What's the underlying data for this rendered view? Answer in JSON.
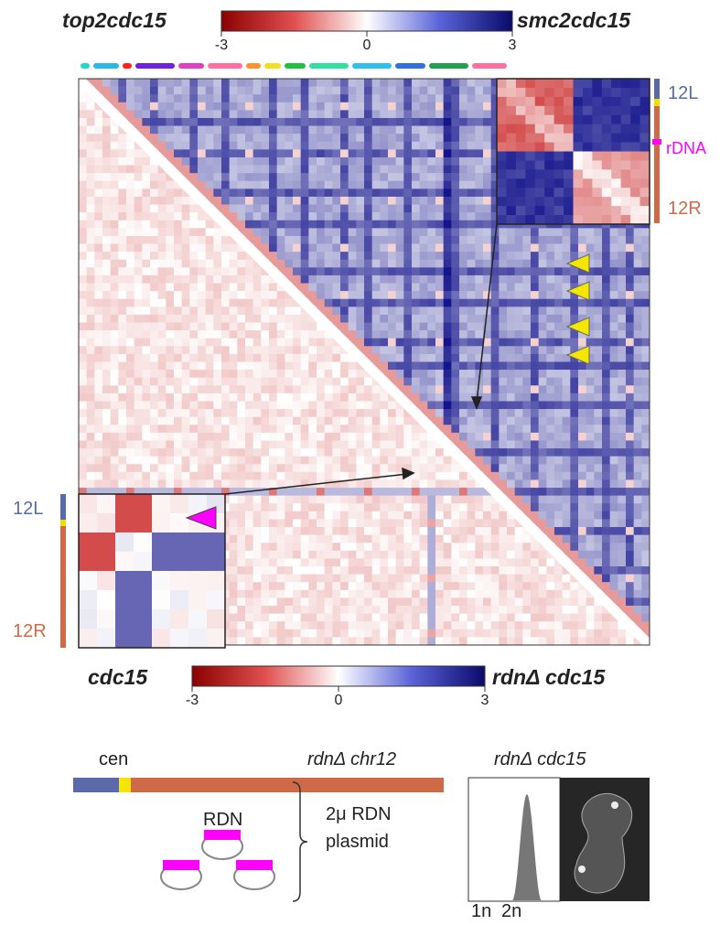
{
  "top_colorbar": {
    "left_label": "top2cdc15",
    "right_label": "smc2cdc15",
    "ticks": [
      -3,
      0,
      3
    ]
  },
  "bottom_colorbar": {
    "left_label": "cdc15",
    "right_label": "rdnΔ cdc15",
    "ticks": [
      -3,
      0,
      3
    ]
  },
  "right_track": {
    "labels": [
      "12L",
      "rDNA",
      "12R"
    ]
  },
  "left_track": {
    "labels": [
      "12L",
      "12R"
    ]
  },
  "schematic": {
    "cen": "cen",
    "chromosome": "rdnΔ chr12",
    "rdn": "RDN",
    "plasmid": [
      "2μ RDN",
      "plasmid"
    ]
  },
  "facs": {
    "title": "rdnΔ cdc15",
    "x_labels": [
      "1n",
      "2n"
    ]
  }
}
